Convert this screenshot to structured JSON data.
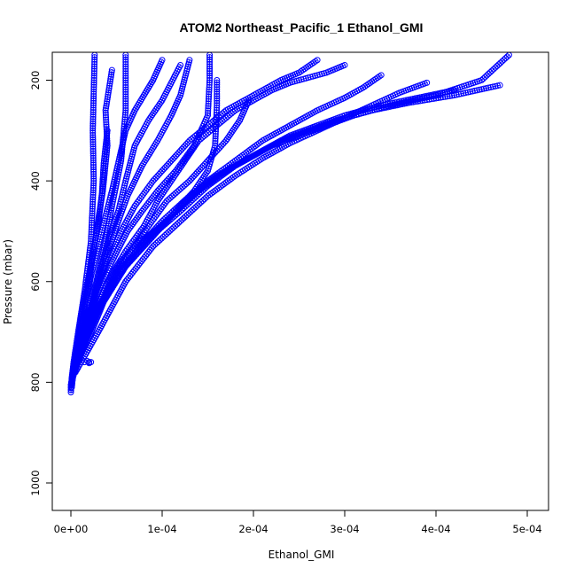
{
  "chart_data": {
    "type": "scatter",
    "title": "ATOM2 Northeast_Pacific_1 Ethanol_GMI",
    "xlabel": "Ethanol_GMI",
    "ylabel": "Pressure (mbar)",
    "xlim": [
      0,
      0.0005
    ],
    "ylim": [
      1050,
      150
    ],
    "y_reversed": true,
    "grid": false,
    "marker": "open-circle",
    "x_ticks": [
      {
        "value": 0,
        "label": "0e+00"
      },
      {
        "value": 0.0001,
        "label": "1e-04"
      },
      {
        "value": 0.0002,
        "label": "2e-04"
      },
      {
        "value": 0.0003,
        "label": "3e-04"
      },
      {
        "value": 0.0004,
        "label": "4e-04"
      },
      {
        "value": 0.0005,
        "label": "5e-04"
      }
    ],
    "y_ticks": [
      {
        "value": 200,
        "label": "200"
      },
      {
        "value": 400,
        "label": "400"
      },
      {
        "value": 600,
        "label": "600"
      },
      {
        "value": 800,
        "label": "800"
      },
      {
        "value": 1000,
        "label": "1000"
      }
    ],
    "series_color": "#0000ff",
    "series": [
      {
        "x": [
          0,
          1e-06,
          3e-06,
          8e-06,
          1.5e-05,
          2.2e-05,
          2.5e-05,
          2.4e-05,
          2.6e-05
        ],
        "y": [
          820,
          790,
          760,
          700,
          620,
          520,
          400,
          300,
          150
        ]
      },
      {
        "x": [
          0,
          2e-06,
          6e-06,
          1.2e-05,
          2e-05,
          2.8e-05,
          3.5e-05,
          4e-05,
          3.8e-05,
          4.5e-05
        ],
        "y": [
          815,
          780,
          740,
          680,
          600,
          500,
          420,
          330,
          260,
          180
        ]
      },
      {
        "x": [
          0,
          3e-06,
          1e-05,
          1.8e-05,
          2.8e-05,
          3.8e-05,
          4.5e-05,
          5.5e-05,
          6e-05,
          6e-05
        ],
        "y": [
          810,
          770,
          720,
          660,
          600,
          520,
          450,
          360,
          260,
          150
        ]
      },
      {
        "x": [
          0,
          4e-06,
          1.2e-05,
          2.2e-05,
          3.2e-05,
          4.2e-05,
          5.2e-05,
          6e-05,
          7e-05,
          8.5e-05,
          0.0001,
          0.00012
        ],
        "y": [
          805,
          765,
          710,
          650,
          580,
          510,
          460,
          400,
          330,
          280,
          240,
          170
        ]
      },
      {
        "x": [
          1e-06,
          5e-06,
          1.5e-05,
          2.5e-05,
          3.8e-05,
          5e-05,
          6.2e-05,
          7.8e-05,
          9.5e-05,
          0.00011,
          0.00012,
          0.00013
        ],
        "y": [
          800,
          760,
          700,
          630,
          560,
          490,
          430,
          370,
          320,
          270,
          230,
          160
        ]
      },
      {
        "x": [
          1e-06,
          6e-06,
          1.8e-05,
          3e-05,
          4.5e-05,
          6.2e-05,
          7.8e-05,
          9.5e-05,
          0.000115,
          0.000135,
          0.00015,
          0.000152,
          0.000152
        ],
        "y": [
          795,
          755,
          690,
          620,
          560,
          500,
          460,
          420,
          380,
          330,
          270,
          200,
          150
        ]
      },
      {
        "x": [
          2e-06,
          8e-06,
          2.2e-05,
          3.8e-05,
          5.5e-05,
          7.5e-05,
          0.0001,
          0.00012,
          0.000135,
          0.00015,
          0.000158,
          0.00016,
          0.00016
        ],
        "y": [
          790,
          750,
          680,
          610,
          560,
          520,
          490,
          450,
          420,
          380,
          330,
          250,
          200
        ]
      },
      {
        "x": [
          2e-06,
          1e-05,
          2.5e-05,
          4.5e-05,
          6.5e-05,
          8.5e-05,
          0.000105,
          0.00013,
          0.00015,
          0.00017,
          0.000185,
          0.000195
        ],
        "y": [
          785,
          740,
          670,
          600,
          540,
          490,
          440,
          400,
          360,
          320,
          280,
          240
        ]
      },
      {
        "x": [
          3e-06,
          1.2e-05,
          2.8e-05,
          5e-05,
          7.5e-05,
          0.0001,
          0.00013,
          0.00016,
          0.00019,
          0.00022,
          0.00025,
          0.00028,
          0.00031,
          0.00035,
          0.0004,
          0.00045,
          0.00048
        ],
        "y": [
          780,
          730,
          660,
          590,
          530,
          480,
          430,
          390,
          360,
          330,
          310,
          290,
          270,
          250,
          230,
          200,
          150
        ]
      },
      {
        "x": [
          3e-06,
          1.5e-05,
          3.2e-05,
          5.5e-05,
          8e-05,
          0.00011,
          0.00014,
          0.00017,
          0.0002,
          0.00023,
          0.00026,
          0.00029,
          0.00033,
          0.00037,
          0.00042,
          0.00047
        ],
        "y": [
          775,
          725,
          650,
          580,
          520,
          470,
          420,
          380,
          350,
          320,
          300,
          280,
          260,
          245,
          230,
          210
        ]
      },
      {
        "x": [
          4e-06,
          1.8e-05,
          3.6e-05,
          6e-05,
          8.8e-05,
          0.00012,
          0.00015,
          0.00018,
          0.00021,
          0.00024,
          0.00027,
          0.0003,
          0.00034,
          0.00038,
          0.00042
        ],
        "y": [
          770,
          720,
          640,
          570,
          510,
          460,
          410,
          370,
          340,
          310,
          290,
          270,
          250,
          235,
          220
        ]
      },
      {
        "x": [
          2e-05,
          2.2e-05,
          2e-05,
          1.8e-05,
          1.5e-05
        ],
        "y": [
          760,
          760,
          762,
          758,
          760
        ]
      },
      {
        "x": [
          2e-06,
          1.2e-05,
          2.5e-05,
          4e-05,
          6e-05,
          8e-05,
          9.5e-05,
          0.00011,
          0.000125,
          0.00014,
          0.00016,
          0.00018,
          0.0002,
          0.00022,
          0.00024,
          0.00026,
          0.00028,
          0.0003
        ],
        "y": [
          790,
          740,
          670,
          600,
          540,
          490,
          440,
          400,
          360,
          320,
          290,
          260,
          240,
          220,
          205,
          195,
          185,
          170
        ]
      },
      {
        "x": [
          1e-06,
          7e-06,
          1.6e-05,
          2.8e-05,
          4e-05,
          5.5e-05,
          7e-05,
          9e-05,
          0.00011,
          0.00013,
          0.00015,
          0.00017,
          0.00019,
          0.00021,
          0.00023,
          0.00025,
          0.00027
        ],
        "y": [
          800,
          755,
          690,
          620,
          560,
          500,
          450,
          400,
          360,
          320,
          290,
          260,
          240,
          220,
          200,
          185,
          160
        ]
      },
      {
        "x": [
          1e-06,
          4e-06,
          9e-06,
          1.5e-05,
          2.2e-05,
          3e-05,
          3.8e-05,
          4.5e-05,
          5e-05,
          5.5e-05,
          6e-05,
          7e-05,
          8e-05,
          9e-05,
          0.0001
        ],
        "y": [
          805,
          765,
          710,
          650,
          590,
          530,
          470,
          420,
          380,
          340,
          300,
          260,
          230,
          200,
          160
        ]
      },
      {
        "x": [
          1e-06,
          3e-06,
          7e-06,
          1.2e-05,
          1.8e-05,
          2.4e-05,
          3e-05,
          3.4e-05,
          3.6e-05,
          4e-05
        ],
        "y": [
          810,
          775,
          725,
          665,
          605,
          545,
          485,
          425,
          365,
          300
        ]
      },
      {
        "x": [
          5e-06,
          3e-05,
          6e-05,
          9e-05,
          0.00012,
          0.00015,
          0.00018,
          0.00021,
          0.00024,
          0.00027,
          0.0003,
          0.00033,
          0.00036,
          0.00039
        ],
        "y": [
          780,
          700,
          600,
          530,
          480,
          430,
          390,
          355,
          325,
          300,
          275,
          250,
          225,
          205
        ]
      },
      {
        "x": [
          2e-06,
          1.5e-05,
          3.5e-05,
          6e-05,
          9e-05,
          0.00012,
          0.00015,
          0.00018,
          0.00021,
          0.00024,
          0.00027,
          0.0003,
          0.00032,
          0.00034
        ],
        "y": [
          790,
          720,
          640,
          570,
          510,
          450,
          400,
          360,
          320,
          290,
          260,
          235,
          215,
          190
        ]
      }
    ]
  }
}
